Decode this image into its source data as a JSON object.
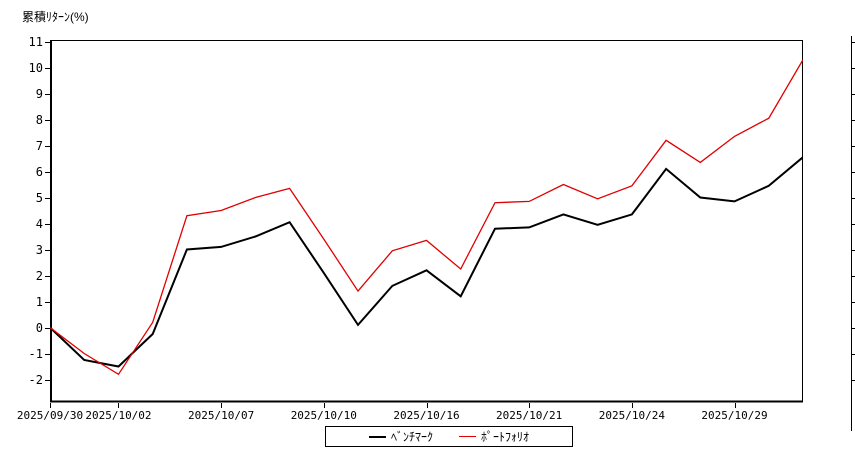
{
  "chart_data": {
    "type": "line",
    "title": "累積ﾘﾀｰﾝ(%)",
    "ylabel": "累積ﾘﾀｰﾝ(%)",
    "ylim": [
      -2,
      11
    ],
    "ytick_step": 1,
    "grid": false,
    "axis_color": "#000000",
    "legend_position": "bottom-center",
    "x_point_count": 23,
    "x_ticks": [
      {
        "index": 0,
        "label": "2025/09/30"
      },
      {
        "index": 2,
        "label": "2025/10/02"
      },
      {
        "index": 5,
        "label": "2025/10/07"
      },
      {
        "index": 8,
        "label": "2025/10/10"
      },
      {
        "index": 11,
        "label": "2025/10/16"
      },
      {
        "index": 14,
        "label": "2025/10/21"
      },
      {
        "index": 17,
        "label": "2025/10/24"
      },
      {
        "index": 20,
        "label": "2025/10/29"
      }
    ],
    "series": [
      {
        "name": "ﾍﾞﾝﾁﾏｰｸ",
        "color": "#000000",
        "line_width": 2,
        "values": [
          0,
          -1.25,
          -1.5,
          -0.25,
          3.0,
          3.1,
          3.5,
          4.05,
          2.1,
          0.1,
          1.6,
          2.2,
          1.2,
          3.8,
          3.85,
          4.35,
          3.95,
          4.35,
          6.1,
          5.0,
          4.85,
          5.45,
          6.55
        ]
      },
      {
        "name": "ﾎﾟｰﾄﾌｫﾘｵ",
        "color": "#e00000",
        "line_width": 1.3,
        "values": [
          0,
          -1.0,
          -1.8,
          0.2,
          4.3,
          4.5,
          5.0,
          5.35,
          3.4,
          1.4,
          2.95,
          3.35,
          2.25,
          4.8,
          4.85,
          5.5,
          4.95,
          5.45,
          7.2,
          6.35,
          7.35,
          8.05,
          10.3
        ]
      }
    ]
  }
}
